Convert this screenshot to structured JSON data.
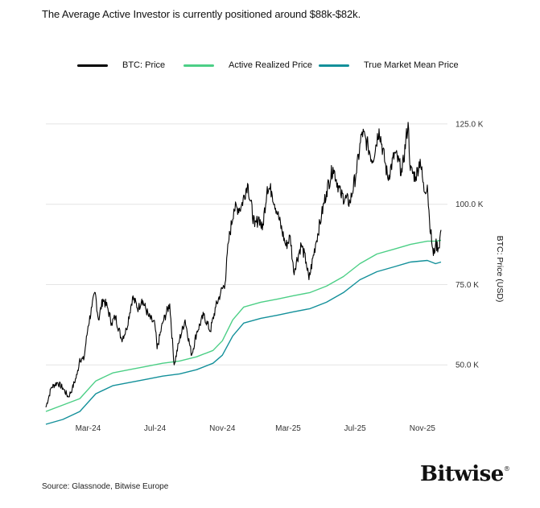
{
  "header": {
    "title": "The Average Active Investor is currently positioned around $88k-$82k."
  },
  "footer": {
    "source": "Source: Glassnode, Bitwise Europe",
    "logo": "Bitwise",
    "logo_mark": "®"
  },
  "colors": {
    "price": "#000000",
    "active_realized": "#4ccf86",
    "true_market_mean": "#13909a",
    "grid": "#e4e4e4"
  },
  "chart_data": {
    "type": "line",
    "title": "The Average Active Investor is currently positioned around $88k-$82k.",
    "ylabel": "BTC: Price (USD)",
    "xlabel": "",
    "x_start": "2023-12-15",
    "x_end": "2025-12-05",
    "ylim": [
      28000,
      132000
    ],
    "grid": true,
    "legend_position": "top",
    "y_ticks": [
      {
        "value": 50000,
        "label": "50.0 K"
      },
      {
        "value": 75000,
        "label": "75.0 K"
      },
      {
        "value": 100000,
        "label": "100.0 K"
      },
      {
        "value": 125000,
        "label": "125.0 K"
      }
    ],
    "x_ticks": [
      {
        "date": "2024-03-01",
        "label": "Mar-24"
      },
      {
        "date": "2024-07-01",
        "label": "Jul-24"
      },
      {
        "date": "2024-11-01",
        "label": "Nov-24"
      },
      {
        "date": "2025-03-01",
        "label": "Mar-25"
      },
      {
        "date": "2025-07-01",
        "label": "Jul-25"
      },
      {
        "date": "2025-11-01",
        "label": "Nov-25"
      }
    ],
    "series": [
      {
        "name": "BTC: Price",
        "color": "#000000",
        "points": [
          [
            "2023-12-15",
            36800
          ],
          [
            "2023-12-25",
            43000
          ],
          [
            "2024-01-05",
            44500
          ],
          [
            "2024-01-15",
            42800
          ],
          [
            "2024-01-25",
            40000
          ],
          [
            "2024-02-01",
            42500
          ],
          [
            "2024-02-10",
            47000
          ],
          [
            "2024-02-15",
            52000
          ],
          [
            "2024-02-22",
            51500
          ],
          [
            "2024-03-01",
            62000
          ],
          [
            "2024-03-08",
            68000
          ],
          [
            "2024-03-14",
            72500
          ],
          [
            "2024-03-20",
            64000
          ],
          [
            "2024-03-28",
            70500
          ],
          [
            "2024-04-05",
            68000
          ],
          [
            "2024-04-13",
            63000
          ],
          [
            "2024-04-20",
            65000
          ],
          [
            "2024-05-01",
            58000
          ],
          [
            "2024-05-10",
            61000
          ],
          [
            "2024-05-21",
            71000
          ],
          [
            "2024-06-01",
            67500
          ],
          [
            "2024-06-07",
            70500
          ],
          [
            "2024-06-20",
            65000
          ],
          [
            "2024-07-01",
            62500
          ],
          [
            "2024-07-05",
            55000
          ],
          [
            "2024-07-15",
            63000
          ],
          [
            "2024-07-28",
            69000
          ],
          [
            "2024-08-05",
            50000
          ],
          [
            "2024-08-15",
            58000
          ],
          [
            "2024-08-25",
            64000
          ],
          [
            "2024-09-06",
            53000
          ],
          [
            "2024-09-15",
            60000
          ],
          [
            "2024-09-28",
            65500
          ],
          [
            "2024-10-10",
            60500
          ],
          [
            "2024-10-20",
            68000
          ],
          [
            "2024-10-29",
            72500
          ],
          [
            "2024-11-06",
            75500
          ],
          [
            "2024-11-12",
            88000
          ],
          [
            "2024-11-22",
            98500
          ],
          [
            "2024-12-05",
            99000
          ],
          [
            "2024-12-17",
            106500
          ],
          [
            "2024-12-30",
            93000
          ],
          [
            "2025-01-07",
            96000
          ],
          [
            "2025-01-13",
            92000
          ],
          [
            "2025-01-22",
            105500
          ],
          [
            "2025-01-30",
            104000
          ],
          [
            "2025-02-10",
            97000
          ],
          [
            "2025-02-25",
            87000
          ],
          [
            "2025-03-05",
            90000
          ],
          [
            "2025-03-11",
            79000
          ],
          [
            "2025-03-25",
            87500
          ],
          [
            "2025-04-03",
            82000
          ],
          [
            "2025-04-08",
            76500
          ],
          [
            "2025-04-20",
            87500
          ],
          [
            "2025-05-01",
            96500
          ],
          [
            "2025-05-10",
            104000
          ],
          [
            "2025-05-22",
            111500
          ],
          [
            "2025-06-05",
            103000
          ],
          [
            "2025-06-22",
            100500
          ],
          [
            "2025-07-03",
            109500
          ],
          [
            "2025-07-14",
            122500
          ],
          [
            "2025-07-25",
            118000
          ],
          [
            "2025-08-02",
            113500
          ],
          [
            "2025-08-14",
            123500
          ],
          [
            "2025-08-30",
            108000
          ],
          [
            "2025-09-12",
            116000
          ],
          [
            "2025-09-25",
            110000
          ],
          [
            "2025-10-06",
            125500
          ],
          [
            "2025-10-10",
            110500
          ],
          [
            "2025-10-20",
            108500
          ],
          [
            "2025-10-28",
            114000
          ],
          [
            "2025-11-04",
            104000
          ],
          [
            "2025-11-10",
            106000
          ],
          [
            "2025-11-14",
            95000
          ],
          [
            "2025-11-21",
            84000
          ],
          [
            "2025-11-25",
            87500
          ],
          [
            "2025-12-01",
            86500
          ],
          [
            "2025-12-05",
            92000
          ]
        ]
      },
      {
        "name": "Active Realized Price",
        "color": "#4ccf86",
        "points": [
          [
            "2023-12-15",
            35500
          ],
          [
            "2024-01-15",
            37500
          ],
          [
            "2024-02-15",
            39500
          ],
          [
            "2024-03-15",
            45000
          ],
          [
            "2024-04-15",
            47500
          ],
          [
            "2024-05-15",
            48500
          ],
          [
            "2024-06-15",
            49500
          ],
          [
            "2024-07-15",
            50500
          ],
          [
            "2024-08-15",
            51200
          ],
          [
            "2024-09-15",
            52500
          ],
          [
            "2024-10-15",
            54500
          ],
          [
            "2024-11-01",
            57500
          ],
          [
            "2024-11-20",
            64000
          ],
          [
            "2024-12-10",
            68000
          ],
          [
            "2025-01-10",
            69500
          ],
          [
            "2025-02-10",
            70500
          ],
          [
            "2025-03-10",
            71500
          ],
          [
            "2025-04-10",
            72500
          ],
          [
            "2025-05-10",
            74500
          ],
          [
            "2025-06-10",
            77500
          ],
          [
            "2025-07-10",
            81500
          ],
          [
            "2025-08-10",
            84500
          ],
          [
            "2025-09-10",
            86000
          ],
          [
            "2025-10-10",
            87500
          ],
          [
            "2025-11-10",
            88500
          ],
          [
            "2025-11-25",
            88500
          ],
          [
            "2025-12-05",
            88800
          ]
        ]
      },
      {
        "name": "True Market Mean Price",
        "color": "#13909a",
        "points": [
          [
            "2023-12-15",
            31500
          ],
          [
            "2024-01-15",
            33000
          ],
          [
            "2024-02-15",
            35500
          ],
          [
            "2024-03-15",
            41000
          ],
          [
            "2024-04-15",
            43500
          ],
          [
            "2024-05-15",
            44500
          ],
          [
            "2024-06-15",
            45500
          ],
          [
            "2024-07-15",
            46500
          ],
          [
            "2024-08-15",
            47200
          ],
          [
            "2024-09-15",
            48500
          ],
          [
            "2024-10-15",
            50500
          ],
          [
            "2024-11-01",
            53000
          ],
          [
            "2024-11-20",
            59000
          ],
          [
            "2024-12-10",
            63000
          ],
          [
            "2025-01-10",
            64500
          ],
          [
            "2025-02-10",
            65500
          ],
          [
            "2025-03-10",
            66500
          ],
          [
            "2025-04-10",
            67500
          ],
          [
            "2025-05-10",
            69500
          ],
          [
            "2025-06-10",
            72500
          ],
          [
            "2025-07-10",
            76500
          ],
          [
            "2025-08-10",
            79000
          ],
          [
            "2025-09-10",
            80500
          ],
          [
            "2025-10-10",
            82000
          ],
          [
            "2025-11-10",
            82500
          ],
          [
            "2025-11-25",
            81500
          ],
          [
            "2025-12-05",
            82000
          ]
        ]
      }
    ]
  }
}
